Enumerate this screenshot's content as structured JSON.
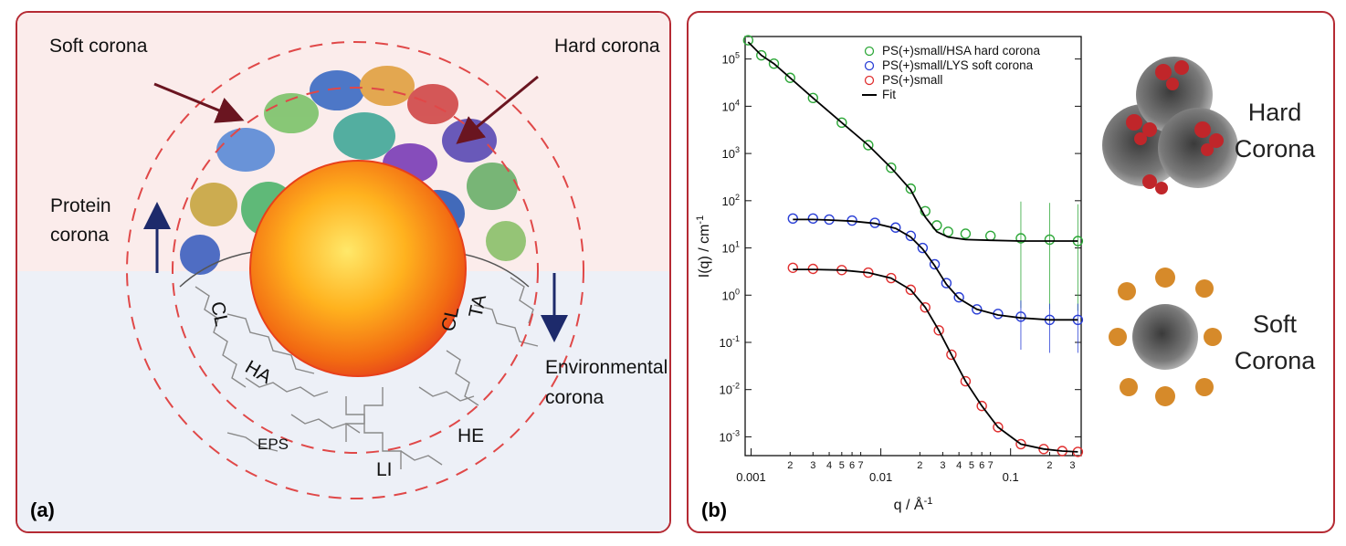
{
  "panel_a": {
    "tag": "(a)",
    "soft_corona": "Soft corona",
    "hard_corona": "Hard corona",
    "protein_corona_1": "Protein",
    "protein_corona_2": "corona",
    "environmental_1": "Environmental",
    "environmental_2": "corona",
    "mol_labels": [
      "CL",
      "CL",
      "TA",
      "HA",
      "EPS",
      "LI",
      "HE"
    ]
  },
  "panel_b": {
    "tag": "(b)",
    "hard_1": "Hard",
    "hard_2": "Corona",
    "soft_1": "Soft",
    "soft_2": "Corona"
  },
  "colors": {
    "frame": "#b52a33",
    "green": "#2fa83a",
    "blue": "#2a3fd6",
    "red": "#e03030",
    "fit": "#000000"
  },
  "chart_data": {
    "type": "scatter",
    "xscale": "log",
    "yscale": "log",
    "xlim": [
      0.0009,
      0.35
    ],
    "ylim": [
      0.0004,
      300000
    ],
    "xlabel": "q / Å",
    "xlabel_sup": "-1",
    "ylabel": "I(q) / cm",
    "ylabel_sup": "-1",
    "xticks": [
      {
        "v": 0.001,
        "t": "0.001"
      },
      {
        "v": 0.01,
        "t": "0.01"
      },
      {
        "v": 0.1,
        "t": "0.1"
      }
    ],
    "xminor": [
      {
        "v": 0.002,
        "t": "2"
      },
      {
        "v": 0.003,
        "t": "3"
      },
      {
        "v": 0.004,
        "t": "4"
      },
      {
        "v": 0.005,
        "t": "5"
      },
      {
        "v": 0.006,
        "t": "6"
      },
      {
        "v": 0.007,
        "t": "7"
      },
      {
        "v": 0.02,
        "t": "2"
      },
      {
        "v": 0.03,
        "t": "3"
      },
      {
        "v": 0.04,
        "t": "4"
      },
      {
        "v": 0.05,
        "t": "5"
      },
      {
        "v": 0.06,
        "t": "6"
      },
      {
        "v": 0.07,
        "t": "7"
      },
      {
        "v": 0.2,
        "t": "2"
      },
      {
        "v": 0.3,
        "t": "3"
      }
    ],
    "yticks": [
      {
        "v": 100000,
        "b": "10",
        "e": "5"
      },
      {
        "v": 10000,
        "b": "10",
        "e": "4"
      },
      {
        "v": 1000,
        "b": "10",
        "e": "3"
      },
      {
        "v": 100,
        "b": "10",
        "e": "2"
      },
      {
        "v": 10,
        "b": "10",
        "e": "1"
      },
      {
        "v": 1,
        "b": "10",
        "e": "0"
      },
      {
        "v": 0.1,
        "b": "10",
        "e": "-1"
      },
      {
        "v": 0.01,
        "b": "10",
        "e": "-2"
      },
      {
        "v": 0.001,
        "b": "10",
        "e": "-3"
      }
    ],
    "series": [
      {
        "name": "PS(+)small/HSA hard corona",
        "color": "#2fa83a",
        "x": [
          0.00095,
          0.0012,
          0.0015,
          0.002,
          0.003,
          0.005,
          0.008,
          0.012,
          0.017,
          0.022,
          0.027,
          0.033,
          0.045,
          0.07,
          0.12,
          0.2,
          0.33
        ],
        "y": [
          250000,
          120000,
          80000,
          40000,
          15000,
          4500,
          1500,
          500,
          180,
          60,
          30,
          22,
          20,
          18,
          16,
          15,
          14
        ],
        "fit_y": [
          230000,
          120000,
          80000,
          40000,
          15000,
          4500,
          1500,
          500,
          170,
          45,
          22,
          17,
          15,
          14.5,
          14,
          14,
          14
        ]
      },
      {
        "name": "PS(+)small/LYS soft corona",
        "color": "#2a3fd6",
        "x": [
          0.0021,
          0.003,
          0.004,
          0.006,
          0.009,
          0.013,
          0.017,
          0.021,
          0.026,
          0.032,
          0.04,
          0.055,
          0.08,
          0.12,
          0.2,
          0.33
        ],
        "y": [
          42,
          42,
          40,
          38,
          34,
          27,
          18,
          10,
          4.5,
          1.8,
          0.9,
          0.5,
          0.4,
          0.35,
          0.3,
          0.3
        ],
        "fit_y": [
          40,
          40,
          39,
          37,
          33,
          26,
          17,
          9.5,
          4.2,
          1.7,
          0.85,
          0.5,
          0.38,
          0.33,
          0.3,
          0.3
        ]
      },
      {
        "name": "PS(+)small",
        "color": "#e03030",
        "x": [
          0.0021,
          0.003,
          0.005,
          0.008,
          0.012,
          0.017,
          0.022,
          0.028,
          0.035,
          0.045,
          0.06,
          0.08,
          0.12,
          0.18,
          0.25,
          0.33
        ],
        "y": [
          3.8,
          3.6,
          3.4,
          3.0,
          2.3,
          1.3,
          0.55,
          0.18,
          0.055,
          0.015,
          0.0045,
          0.0016,
          0.0007,
          0.00055,
          0.0005,
          0.00048
        ],
        "fit_y": [
          3.5,
          3.5,
          3.4,
          3.0,
          2.3,
          1.3,
          0.55,
          0.18,
          0.055,
          0.015,
          0.0045,
          0.0016,
          0.0007,
          0.00055,
          0.0005,
          0.00048
        ]
      }
    ],
    "fit_name": "Fit",
    "legend_position": "top-right"
  }
}
